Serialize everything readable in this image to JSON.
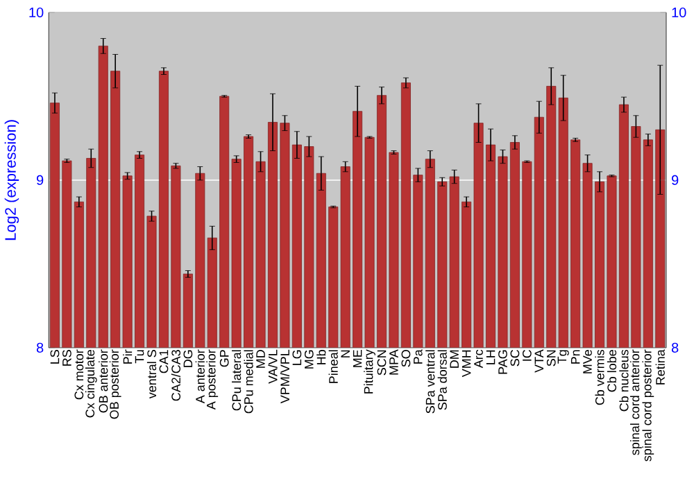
{
  "chart_data": {
    "type": "bar",
    "ylabel": "Log2 (expression)",
    "categories": [
      "LS",
      "RS",
      "Cx motor",
      "Cx cingulate",
      "OB anterior",
      "OB posterior",
      "Pir",
      "Tu",
      "ventral S",
      "CA1",
      "CA2/CA3",
      "DG",
      "A anterior",
      "A posterior",
      "GP",
      "CPu lateral",
      "CPu medial",
      "MD",
      "VA/VL",
      "VPM/VPL",
      "LG",
      "MG",
      "Hb",
      "Pineal",
      "N",
      "ME",
      "Pituitary",
      "SCN",
      "MPA",
      "SO",
      "Pa",
      "SPa ventral",
      "SPa dorsal",
      "DM",
      "VMH",
      "Arc",
      "LH",
      "PAG",
      "SC",
      "IC",
      "VTA",
      "SN",
      "Tg",
      "Pn",
      "MVe",
      "Cb vermis",
      "Cb lobe",
      "Cb nucleus",
      "spinal cord anterior",
      "spinal cord posterior",
      "Retina"
    ],
    "values": [
      9.46,
      9.115,
      8.87,
      9.13,
      9.8,
      9.65,
      9.025,
      9.15,
      8.785,
      9.65,
      9.085,
      8.44,
      9.04,
      8.655,
      9.5,
      9.125,
      9.26,
      9.11,
      9.345,
      9.34,
      9.21,
      9.2,
      9.04,
      8.84,
      9.08,
      9.41,
      9.255,
      9.505,
      9.165,
      9.58,
      9.03,
      9.125,
      8.99,
      9.02,
      8.87,
      9.34,
      9.21,
      9.14,
      9.225,
      9.11,
      9.375,
      9.56,
      9.49,
      9.24,
      9.1,
      8.99,
      9.025,
      9.45,
      9.32,
      9.24,
      9.3
    ],
    "errors": [
      0.06,
      0.01,
      0.03,
      0.055,
      0.045,
      0.1,
      0.02,
      0.02,
      0.03,
      0.02,
      0.015,
      0.02,
      0.04,
      0.07,
      0.005,
      0.02,
      0.01,
      0.06,
      0.17,
      0.045,
      0.08,
      0.06,
      0.1,
      0.005,
      0.03,
      0.15,
      0.005,
      0.05,
      0.01,
      0.03,
      0.04,
      0.05,
      0.025,
      0.04,
      0.03,
      0.115,
      0.095,
      0.04,
      0.04,
      0.005,
      0.095,
      0.11,
      0.135,
      0.01,
      0.05,
      0.06,
      0.005,
      0.045,
      0.065,
      0.035,
      0.385
    ],
    "color": "#b83232",
    "ylim": [
      8,
      10
    ],
    "yticks": [
      8,
      9,
      10
    ],
    "y2lim": [
      8,
      10
    ],
    "y2ticks": [
      8,
      9,
      10
    ],
    "grid": "y"
  }
}
